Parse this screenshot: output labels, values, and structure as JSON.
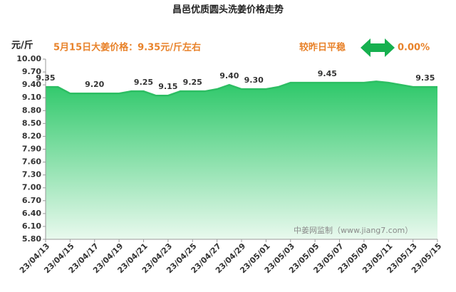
{
  "chart_data": {
    "type": "area",
    "title": "昌邑优质圆头洗姜价格走势",
    "y_unit": "元/斤",
    "annotations": [
      "5月15日大姜价格：9.35元/斤左右",
      "较昨日平稳",
      "0.00%"
    ],
    "watermark": "中姜网监制（www.jiang7.com）",
    "categories": [
      "23/04/13",
      null,
      "23/04/15",
      null,
      "23/04/17",
      null,
      "23/04/19",
      null,
      "23/04/21",
      null,
      "23/04/23",
      null,
      "23/04/25",
      null,
      "23/04/27",
      null,
      "23/04/29",
      null,
      "23/05/01",
      null,
      "23/05/03",
      null,
      "23/05/05",
      null,
      "23/05/07",
      null,
      "23/05/09",
      null,
      "23/05/11",
      null,
      "23/05/13",
      null,
      "23/05/15"
    ],
    "values": [
      9.35,
      9.35,
      9.2,
      9.2,
      9.2,
      9.2,
      9.2,
      9.25,
      9.25,
      9.15,
      9.15,
      9.25,
      9.25,
      9.25,
      9.3,
      9.4,
      9.3,
      9.3,
      9.3,
      9.35,
      9.45,
      9.45,
      9.45,
      9.45,
      9.45,
      9.45,
      9.45,
      9.48,
      9.45,
      9.4,
      9.35,
      9.35,
      9.35
    ],
    "value_labels": [
      "9.35",
      null,
      null,
      null,
      "9.20",
      null,
      null,
      null,
      "9.25",
      null,
      "9.15",
      null,
      "9.25",
      null,
      null,
      "9.40",
      null,
      "9.30",
      null,
      null,
      null,
      null,
      null,
      "9.45",
      null,
      null,
      null,
      null,
      null,
      null,
      null,
      "9.35",
      null
    ],
    "color": "#2dbe63",
    "ylim": [
      5.8,
      10.0
    ],
    "yticks": [
      {
        "value": 10.0,
        "label": "10.00"
      },
      {
        "value": 9.7,
        "label": "9.70"
      },
      {
        "value": 9.4,
        "label": "9.40"
      },
      {
        "value": 9.1,
        "label": "9.10"
      },
      {
        "value": 8.8,
        "label": "8.80"
      },
      {
        "value": 8.5,
        "label": "8.50"
      },
      {
        "value": 8.2,
        "label": "8.20"
      },
      {
        "value": 7.9,
        "label": "7.90"
      },
      {
        "value": 7.6,
        "label": "7.60"
      },
      {
        "value": 7.3,
        "label": "7.30"
      },
      {
        "value": 7.0,
        "label": "7.00"
      },
      {
        "value": 6.7,
        "label": "6.70"
      },
      {
        "value": 6.4,
        "label": "6.40"
      },
      {
        "value": 6.1,
        "label": "6.10"
      },
      {
        "value": 5.8,
        "label": "5.80"
      }
    ],
    "grid": false
  }
}
